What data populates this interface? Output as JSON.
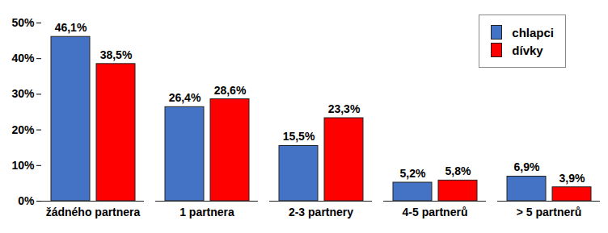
{
  "chart_data": {
    "type": "bar",
    "categories": [
      "žádného partnera",
      "1 partnera",
      "2-3 partnery",
      "4-5 partnerů",
      "> 5 partnerů"
    ],
    "series": [
      {
        "name": "chlapci",
        "color": "#4472c4",
        "values": [
          46.1,
          26.4,
          15.5,
          5.2,
          6.9
        ],
        "value_labels": [
          "46,1%",
          "26,4%",
          "15,5%",
          "5,2%",
          "6,9%"
        ]
      },
      {
        "name": "dívky",
        "color": "#ff0000",
        "values": [
          38.5,
          28.6,
          23.3,
          5.8,
          3.9
        ],
        "value_labels": [
          "38,5%",
          "28,6%",
          "23,3%",
          "5,8%",
          "3,9%"
        ]
      }
    ],
    "ylim": [
      0,
      50
    ],
    "yticks": [
      {
        "value": 0,
        "label": "0%"
      },
      {
        "value": 10,
        "label": "10%"
      },
      {
        "value": 20,
        "label": "20%"
      },
      {
        "value": 30,
        "label": "30%"
      },
      {
        "value": 40,
        "label": "40%"
      },
      {
        "value": 50,
        "label": "50%"
      }
    ],
    "grid": false,
    "data_labels": true,
    "legend": "upper right"
  }
}
